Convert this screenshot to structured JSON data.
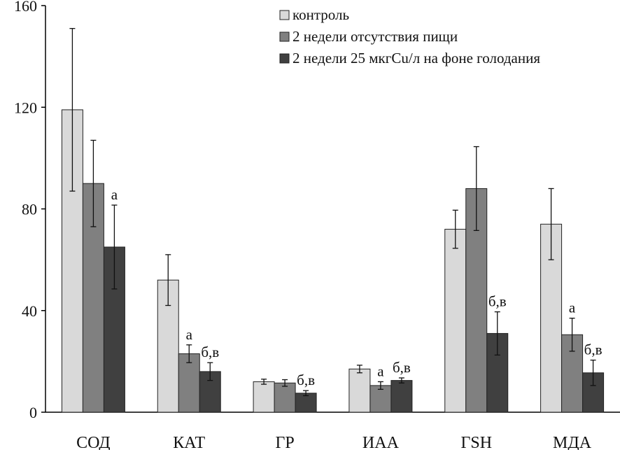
{
  "chart_data": {
    "type": "bar",
    "title": "",
    "xlabel": "",
    "ylabel": "",
    "ylim": [
      0,
      160
    ],
    "yticks": [
      0,
      40,
      80,
      120,
      160
    ],
    "grid": false,
    "legend_position": "top-right",
    "categories": [
      "СОД",
      "КАТ",
      "ГР",
      "ИАА",
      "ГSH",
      "МДА"
    ],
    "series": [
      {
        "name": "контроль",
        "color": "#d9d9d9",
        "values": [
          119,
          52,
          12,
          17,
          72,
          74
        ],
        "errors": [
          32,
          10,
          1,
          1.5,
          7.5,
          14
        ],
        "annotations": [
          "",
          "",
          "",
          "",
          "",
          ""
        ]
      },
      {
        "name": "2 недели отсутствия пищи",
        "color": "#808080",
        "values": [
          90,
          23,
          11.5,
          10.5,
          88,
          30.5
        ],
        "errors": [
          17,
          3.5,
          1.3,
          1.5,
          16.5,
          6.5
        ],
        "annotations": [
          "",
          "а",
          "",
          "а",
          "",
          "а"
        ]
      },
      {
        "name": "2 недели 25 мкгCu/л на фоне голодания",
        "color": "#404040",
        "values": [
          65,
          16,
          7.5,
          12.5,
          31,
          15.5
        ],
        "errors": [
          16.5,
          3.5,
          1,
          1,
          8.5,
          5
        ],
        "annotations": [
          "а",
          "б,в",
          "б,в",
          "б,в",
          "б,в",
          "б,в"
        ]
      }
    ]
  }
}
